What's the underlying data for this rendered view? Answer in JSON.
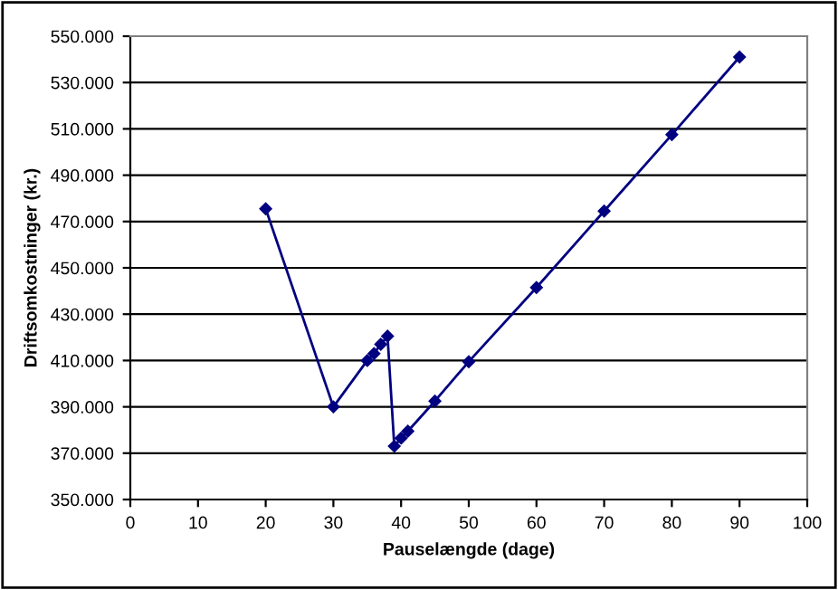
{
  "chart_data": {
    "type": "line",
    "xlabel": "Pauselængde (dage)",
    "ylabel": "Driftsomkostninger (kr.)",
    "series": [
      {
        "color": "#000080",
        "x": [
          20,
          30,
          35,
          36,
          37,
          38,
          39,
          40,
          41,
          45,
          50,
          60,
          70,
          80,
          90
        ],
        "values": [
          475500,
          390000,
          410000,
          413000,
          417000,
          420500,
          373000,
          376500,
          379500,
          392500,
          409500,
          441500,
          474500,
          507500,
          541000
        ]
      }
    ],
    "xlim": [
      0,
      100
    ],
    "xticks": [
      0,
      10,
      20,
      30,
      40,
      50,
      60,
      70,
      80,
      90,
      100
    ],
    "ylim": [
      350000,
      550000
    ],
    "yticks": [
      {
        "value": 350000,
        "label": "350.000"
      },
      {
        "value": 370000,
        "label": "370.000"
      },
      {
        "value": 390000,
        "label": "390.000"
      },
      {
        "value": 410000,
        "label": "410.000"
      },
      {
        "value": 430000,
        "label": "430.000"
      },
      {
        "value": 450000,
        "label": "450.000"
      },
      {
        "value": 470000,
        "label": "470.000"
      },
      {
        "value": 490000,
        "label": "490.000"
      },
      {
        "value": 510000,
        "label": "510.000"
      },
      {
        "value": 530000,
        "label": "530.000"
      },
      {
        "value": 550000,
        "label": "550.000"
      }
    ],
    "grid": "y",
    "marker": "diamond",
    "line_style": "solid"
  }
}
